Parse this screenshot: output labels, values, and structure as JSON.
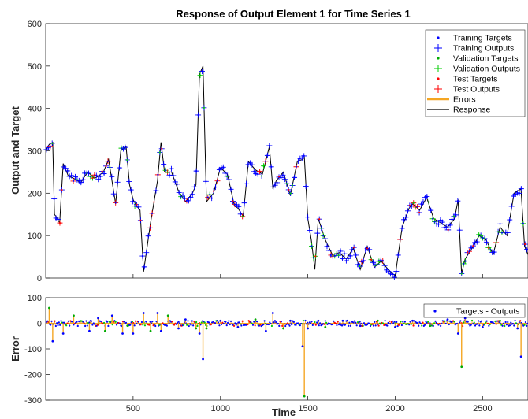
{
  "chart_data": [
    {
      "type": "line",
      "title": "Response of Output Element 1 for Time Series 1",
      "ylabel": "Output and Target",
      "xlim": [
        0,
        2760
      ],
      "ylim": [
        0,
        600
      ],
      "yticks": [
        0,
        100,
        200,
        300,
        400,
        500,
        600
      ],
      "ytick_labels": [
        "0",
        "100",
        "200",
        "300",
        "400",
        "500",
        "600"
      ],
      "grid": false,
      "legend_position": "top-right",
      "legend": [
        {
          "label": "Training Targets",
          "marker": "dot",
          "color": "#0000ff"
        },
        {
          "label": "Training Outputs",
          "marker": "plus",
          "color": "#0000ff"
        },
        {
          "label": "Validation Targets",
          "marker": "dot",
          "color": "#00aa00"
        },
        {
          "label": "Validation Outputs",
          "marker": "plus",
          "color": "#00cc00"
        },
        {
          "label": "Test Targets",
          "marker": "dot",
          "color": "#ff0000"
        },
        {
          "label": "Test Outputs",
          "marker": "plus",
          "color": "#ff0000"
        },
        {
          "label": "Errors",
          "marker": "line",
          "color": "#f5a623"
        },
        {
          "label": "Response",
          "marker": "line",
          "color": "#000000"
        }
      ],
      "series": [
        {
          "x": [
            0,
            20,
            40,
            50,
            60,
            80,
            100,
            130,
            160,
            200,
            240,
            280,
            300,
            330,
            360,
            400,
            430,
            460,
            480,
            500,
            520,
            540,
            560,
            600,
            640,
            660,
            680,
            720,
            760,
            800,
            840,
            860,
            880,
            900,
            920,
            960,
            1000,
            1040,
            1080,
            1100,
            1130,
            1160,
            1200,
            1240,
            1280,
            1300,
            1320,
            1360,
            1400,
            1440,
            1470,
            1480,
            1500,
            1520,
            1540,
            1560,
            1600,
            1640,
            1680,
            1720,
            1760,
            1800,
            1840,
            1880,
            1920,
            1960,
            2000,
            2040,
            2080,
            2100,
            2140,
            2180,
            2220,
            2260,
            2300,
            2340,
            2360,
            2380,
            2400,
            2440,
            2480,
            2520,
            2560,
            2600,
            2640,
            2680,
            2720,
            2740,
            2760
          ],
          "y": [
            300,
            315,
            320,
            150,
            145,
            130,
            270,
            240,
            235,
            225,
            250,
            235,
            240,
            250,
            280,
            175,
            300,
            310,
            220,
            185,
            170,
            160,
            15,
            130,
            230,
            320,
            250,
            250,
            205,
            180,
            200,
            220,
            480,
            500,
            180,
            200,
            260,
            245,
            170,
            165,
            145,
            275,
            255,
            245,
            310,
            210,
            230,
            250,
            195,
            275,
            280,
            285,
            140,
            90,
            20,
            140,
            90,
            55,
            60,
            45,
            70,
            20,
            75,
            25,
            40,
            20,
            5,
            120,
            165,
            175,
            160,
            190,
            140,
            130,
            120,
            140,
            185,
            10,
            45,
            70,
            100,
            90,
            55,
            120,
            100,
            200,
            210,
            75,
            55
          ]
        }
      ]
    },
    {
      "type": "line",
      "xlabel": "Time",
      "ylabel": "Error",
      "xlim": [
        0,
        2760
      ],
      "ylim": [
        -300,
        100
      ],
      "xticks": [
        500,
        1000,
        1500,
        2000,
        2500
      ],
      "xtick_labels": [
        "500",
        "1000",
        "1500",
        "2000",
        "2500"
      ],
      "yticks": [
        -300,
        -200,
        -100,
        0,
        100
      ],
      "ytick_labels": [
        "-300",
        "-200",
        "-100",
        "0",
        "100"
      ],
      "grid": false,
      "legend_position": "top-right",
      "legend": [
        {
          "label": "Targets - Outputs",
          "marker": "dot",
          "color": "#0000ff"
        }
      ],
      "spikes": {
        "x": [
          20,
          40,
          100,
          160,
          250,
          300,
          340,
          380,
          440,
          470,
          500,
          560,
          600,
          640,
          660,
          700,
          760,
          800,
          860,
          880,
          900,
          920,
          1000,
          1100,
          1200,
          1260,
          1300,
          1360,
          1400,
          1470,
          1480,
          1500,
          1560,
          1600,
          1700,
          1800,
          1900,
          2000,
          2100,
          2200,
          2300,
          2360,
          2380,
          2400,
          2500,
          2600,
          2700,
          2720
        ],
        "y": [
          60,
          -70,
          -40,
          30,
          -30,
          20,
          -30,
          30,
          -40,
          -10,
          -40,
          40,
          -30,
          40,
          -30,
          30,
          -20,
          15,
          -20,
          -40,
          -140,
          -20,
          10,
          -15,
          15,
          -30,
          40,
          -20,
          10,
          -90,
          -285,
          -20,
          10,
          -15,
          10,
          -10,
          10,
          -15,
          10,
          -10,
          15,
          -40,
          -170,
          20,
          -15,
          10,
          -20,
          -130
        ]
      }
    }
  ]
}
